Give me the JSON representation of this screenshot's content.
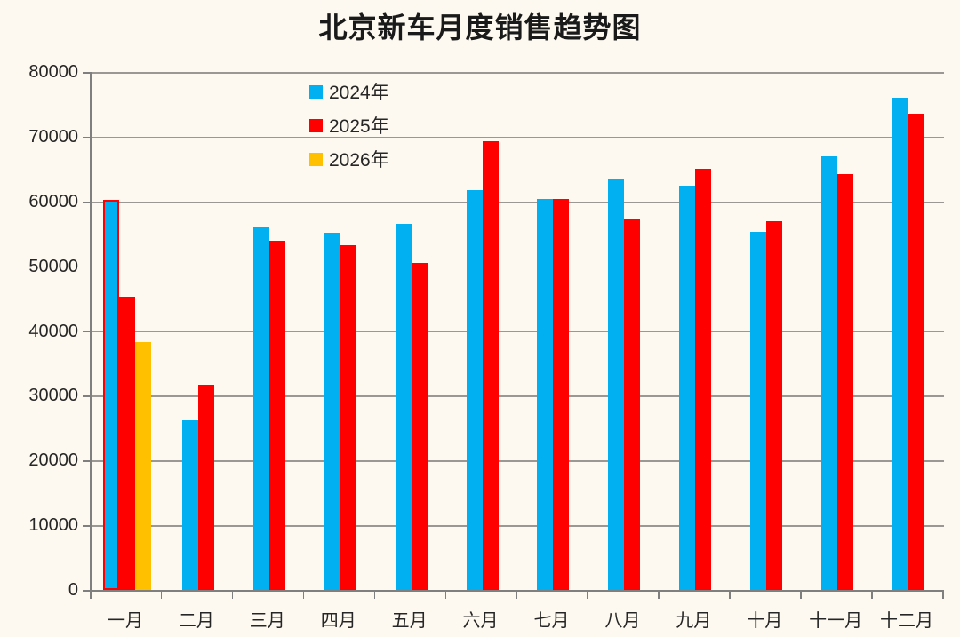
{
  "title": "北京新车月度销售趋势图",
  "chart_data": {
    "type": "bar",
    "title": "北京新车月度销售趋势图",
    "categories": [
      "一月",
      "二月",
      "三月",
      "四月",
      "五月",
      "六月",
      "七月",
      "八月",
      "九月",
      "十月",
      "十一月",
      "十二月"
    ],
    "series": [
      {
        "name": "2024年",
        "color": "#00b0f0",
        "values": [
          60300,
          26200,
          56000,
          55200,
          56600,
          61700,
          60400,
          63400,
          62500,
          55300,
          67000,
          76000
        ]
      },
      {
        "name": "2025年",
        "color": "#ff0000",
        "values": [
          45300,
          31700,
          54000,
          53300,
          50500,
          69300,
          60400,
          57200,
          65000,
          56900,
          64200,
          73600
        ]
      },
      {
        "name": "2026年",
        "color": "#ffc000",
        "values": [
          38300,
          null,
          null,
          null,
          null,
          null,
          null,
          null,
          null,
          null,
          null,
          null
        ]
      }
    ],
    "xlabel": "",
    "ylabel": "",
    "ylim": [
      0,
      80000
    ],
    "ytick_step": 10000,
    "ytick_labels": [
      "0",
      "10000",
      "20000",
      "30000",
      "40000",
      "50000",
      "60000",
      "70000",
      "80000"
    ],
    "grid": true,
    "legend_position": "top-left-inside",
    "highlight": {
      "series": "2024年",
      "category": "一月",
      "outline_color": "#ff0000"
    }
  },
  "colors": {
    "background": "#fdf9f0",
    "gridline": "#9b9894",
    "axis": "#7f7f7f",
    "text": "#262626"
  }
}
